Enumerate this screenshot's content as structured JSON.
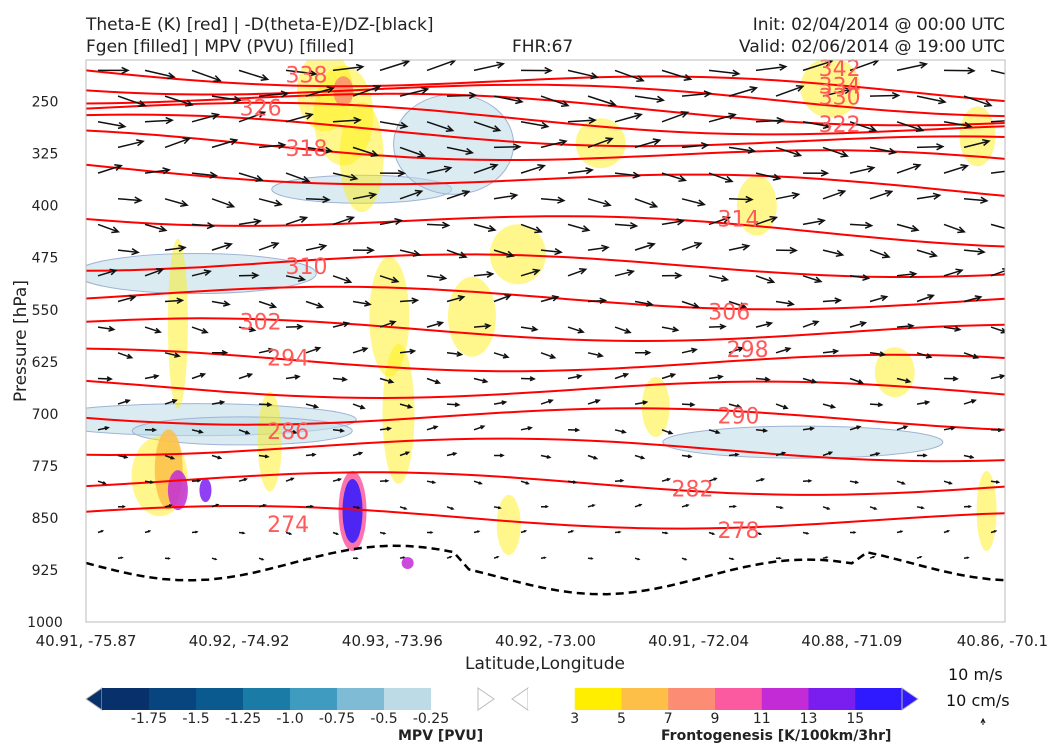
{
  "header": {
    "title_left_1": "Theta-E (K) [red] | -D(theta-E)/DZ-[black]",
    "title_left_2": "Fgen [filled] | MPV (PVU) [filled]",
    "title_center": "FHR:67",
    "title_right_1": "Init: 02/04/2014 @ 00:00 UTC",
    "title_right_2": "Valid: 02/06/2014 @ 19:00 UTC"
  },
  "chart_data": {
    "type": "cross-section",
    "xlabel": "Latitude,Longitude",
    "ylabel": "Pressure [hPa]",
    "ylim": [
      1000,
      190
    ],
    "y_ticks": [
      250,
      325,
      400,
      475,
      550,
      625,
      700,
      775,
      850,
      925,
      1000
    ],
    "x_ticks": [
      "40.91, -75.87",
      "40.92, -74.92",
      "40.93, -73.96",
      "40.92, -73.00",
      "40.91, -72.04",
      "40.88, -71.09",
      "40.86, -70.1"
    ],
    "theta_e_contour_labels": [
      {
        "value": "342",
        "x_frac": 0.82,
        "p": 203
      },
      {
        "value": "338",
        "x_frac": 0.24,
        "p": 212
      },
      {
        "value": "334",
        "x_frac": 0.82,
        "p": 228
      },
      {
        "value": "330",
        "x_frac": 0.82,
        "p": 244
      },
      {
        "value": "326",
        "x_frac": 0.19,
        "p": 260
      },
      {
        "value": "322",
        "x_frac": 0.82,
        "p": 284
      },
      {
        "value": "318",
        "x_frac": 0.24,
        "p": 318
      },
      {
        "value": "314",
        "x_frac": 0.71,
        "p": 420
      },
      {
        "value": "310",
        "x_frac": 0.24,
        "p": 488
      },
      {
        "value": "306",
        "x_frac": 0.7,
        "p": 554
      },
      {
        "value": "302",
        "x_frac": 0.19,
        "p": 568
      },
      {
        "value": "298",
        "x_frac": 0.72,
        "p": 608
      },
      {
        "value": "294",
        "x_frac": 0.22,
        "p": 620
      },
      {
        "value": "290",
        "x_frac": 0.71,
        "p": 704
      },
      {
        "value": "286",
        "x_frac": 0.22,
        "p": 726
      },
      {
        "value": "282",
        "x_frac": 0.66,
        "p": 809
      },
      {
        "value": "278",
        "x_frac": 0.71,
        "p": 869
      },
      {
        "value": "274",
        "x_frac": 0.22,
        "p": 860
      }
    ],
    "mpv_colorbar": {
      "label": "MPV [PVU]",
      "ticks": [
        "-1.75",
        "-1.5",
        "-1.25",
        "-1.0",
        "-0.75",
        "-0.5",
        "-0.25"
      ],
      "colors": [
        "#08306b",
        "#08457e",
        "#0a5a90",
        "#1b7ba7",
        "#3f9cc0",
        "#7fbbd4",
        "#bcdbe7",
        "#ffffff"
      ]
    },
    "fgen_colorbar": {
      "label": "Frontogenesis [K/100km/3hr]",
      "ticks": [
        "3",
        "5",
        "7",
        "9",
        "11",
        "13",
        "15"
      ],
      "colors": [
        "#ffffff",
        "#ffee00",
        "#fdbf47",
        "#fc8c73",
        "#fc5aa0",
        "#c22bd6",
        "#7a1ef0",
        "#2f19ff"
      ]
    },
    "wind_key": {
      "u_label": "10 m/s",
      "w_label": "10 cm/s"
    },
    "colors": {
      "theta_e": "#ff0000",
      "theta_e_label": "#ff5a5a",
      "dthetae": "#000000",
      "arrows": "#111111"
    }
  }
}
